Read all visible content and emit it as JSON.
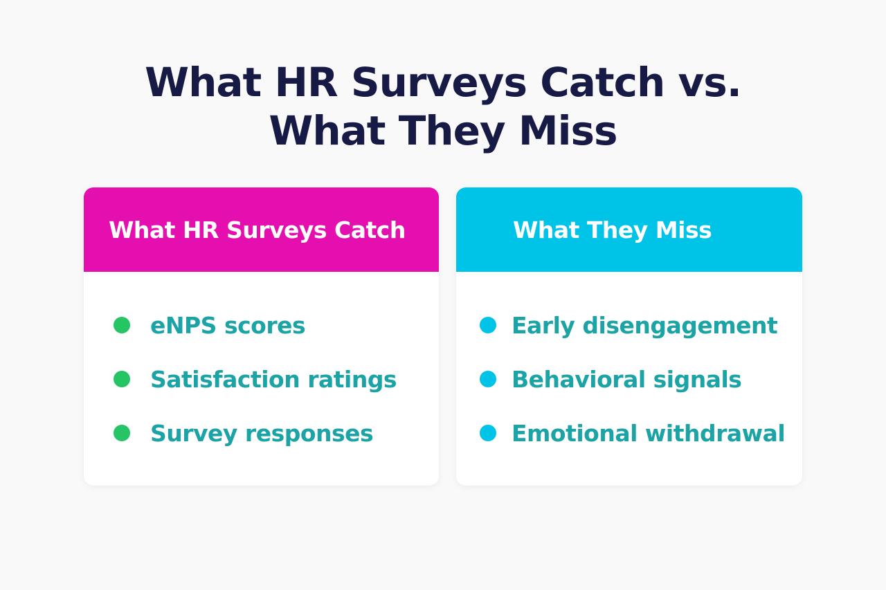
{
  "title": {
    "line1": "What HR Surveys Catch vs.",
    "line2": "What They Miss"
  },
  "columns": [
    {
      "header": "What HR Surveys Catch",
      "header_color": "#e50fb0",
      "bullet_color": "#25c464",
      "items": [
        "eNPS scores",
        "Satisfaction ratings",
        "Survey responses"
      ]
    },
    {
      "header": "What They Miss",
      "header_color": "#00c3e8",
      "bullet_color": "#00c3e8",
      "items": [
        "Early disengagement",
        "Behavioral signals",
        "Emotional withdrawal"
      ]
    }
  ],
  "colors": {
    "title": "#171a45",
    "item_text": "#1ba3a5",
    "background": "#f9f9fa"
  }
}
